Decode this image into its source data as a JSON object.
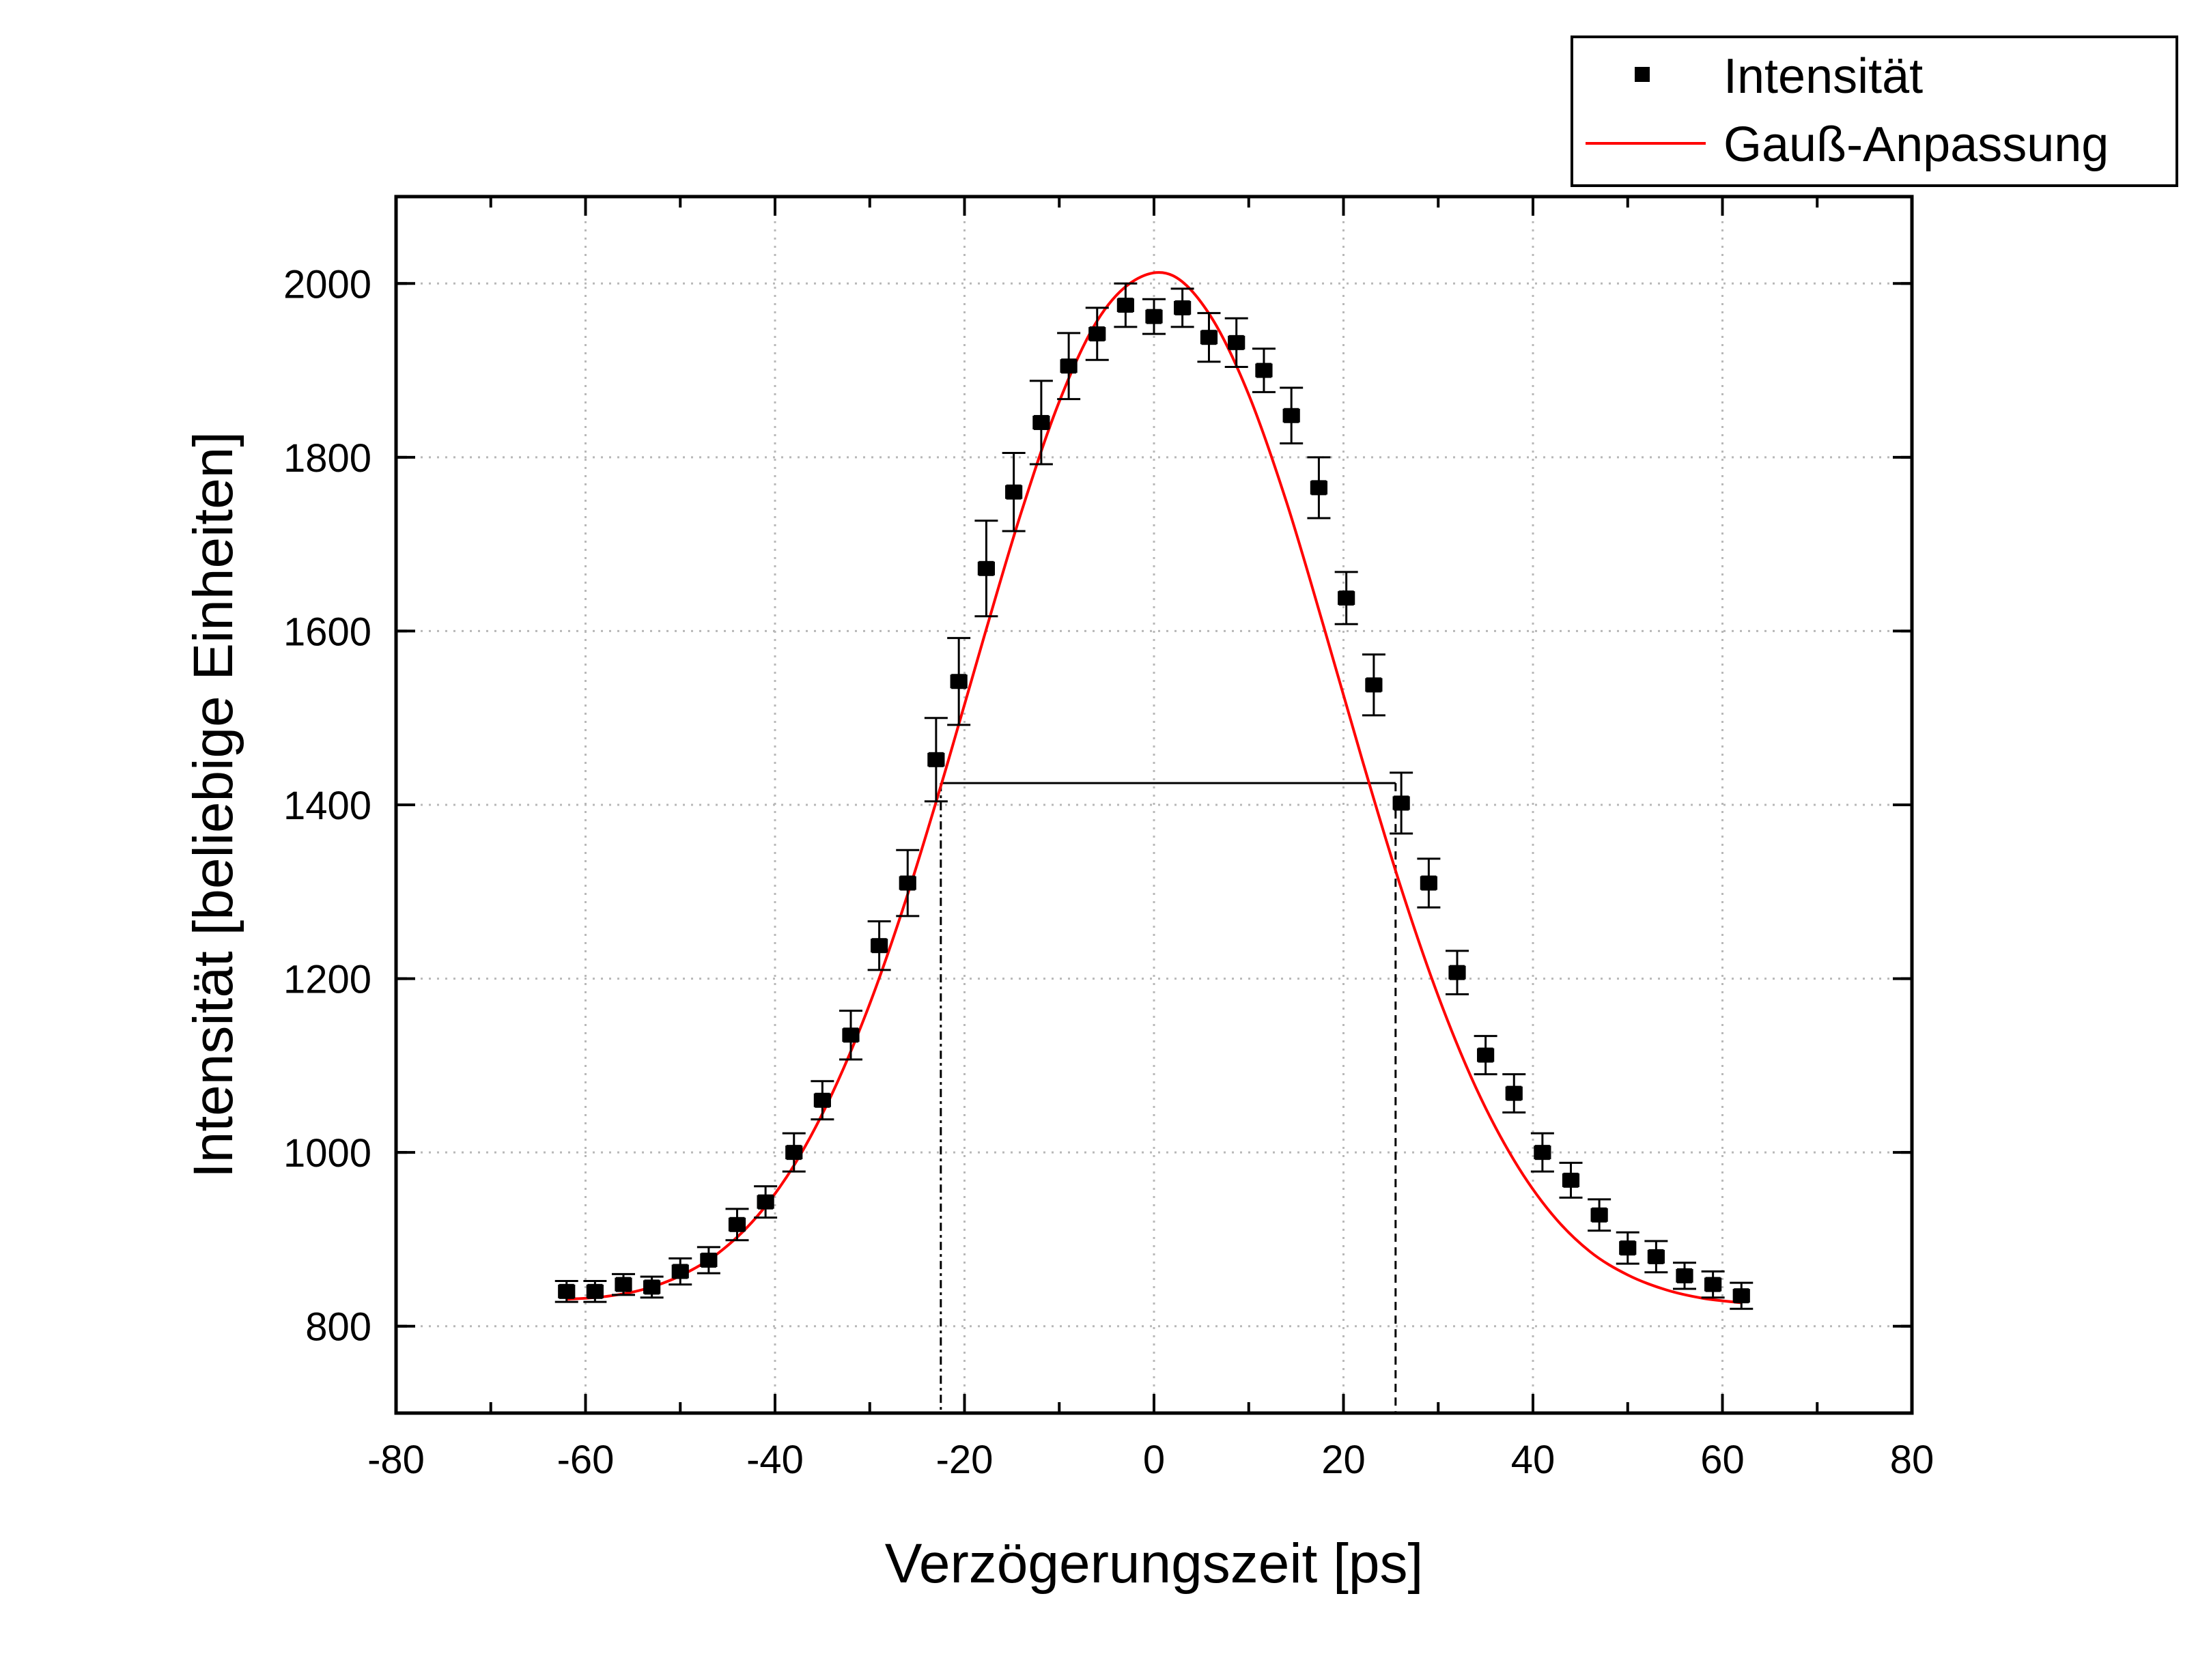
{
  "chart_data": {
    "type": "scatter",
    "xlabel": "Verzögerungszeit [ps]",
    "ylabel": "Intensität [beliebige Einheiten]",
    "xlim": [
      -80,
      80
    ],
    "ylim": [
      700,
      2100
    ],
    "xticks": [
      -80,
      -60,
      -40,
      -20,
      0,
      20,
      40,
      60,
      80
    ],
    "yticks": [
      800,
      1000,
      1200,
      1400,
      1600,
      1800,
      2000
    ],
    "grid": "dotted",
    "legend": "top-right, outside plot",
    "series": [
      {
        "name": "Intensität",
        "kind": "points-with-errorbars",
        "color": "#000000",
        "x": [
          -62,
          -59,
          -56,
          -53,
          -50,
          -47,
          -44,
          -41,
          -38,
          -35,
          -32,
          -29,
          -26,
          -23,
          -20.6,
          -17.7,
          -14.8,
          -11.9,
          -9,
          -6,
          -3,
          0,
          3,
          5.8,
          8.7,
          11.6,
          14.5,
          17.4,
          20.3,
          23.2,
          26.1,
          29,
          32,
          35,
          38,
          41,
          44,
          47,
          50,
          53,
          56,
          59,
          62
        ],
        "y": [
          840,
          840,
          848,
          845,
          863,
          876,
          917,
          943,
          1000,
          1060,
          1135,
          1238,
          1310,
          1452,
          1542,
          1672,
          1760,
          1840,
          1905,
          1942,
          1975,
          1962,
          1972,
          1938,
          1932,
          1900,
          1848,
          1765,
          1638,
          1538,
          1402,
          1310,
          1207,
          1112,
          1068,
          1000,
          968,
          928,
          890,
          880,
          858,
          848,
          835
        ],
        "yerr": [
          12,
          12,
          12,
          12,
          15,
          15,
          18,
          18,
          22,
          22,
          28,
          28,
          38,
          48,
          50,
          55,
          45,
          48,
          38,
          30,
          25,
          20,
          22,
          28,
          28,
          25,
          32,
          35,
          30,
          35,
          35,
          28,
          25,
          22,
          22,
          22,
          20,
          18,
          18,
          18,
          15,
          15,
          15
        ],
        "xerr": 0.8
      },
      {
        "name": "Gauß-Anpassung",
        "kind": "line",
        "color": "#ff0000",
        "x": [
          -62,
          -58,
          -54,
          -50,
          -46,
          -42,
          -38,
          -34,
          -30,
          -26,
          -22,
          -18,
          -14,
          -10,
          -6,
          -2,
          2,
          6,
          10,
          14,
          18,
          22,
          26,
          30,
          34,
          38,
          42,
          46,
          50,
          54,
          58,
          62
        ],
        "y": [
          831,
          834,
          842,
          858,
          884,
          925,
          985,
          1067,
          1171,
          1297,
          1440,
          1591,
          1737,
          1864,
          1957,
          2004,
          2009,
          1962,
          1872,
          1748,
          1602,
          1451,
          1307,
          1180,
          1074,
          991,
          929,
          886,
          859,
          842,
          832,
          827
        ]
      }
    ],
    "annotations": {
      "fwhm_level": 1425,
      "fwhm_left_x": -22.5,
      "fwhm_right_x": 25.5
    }
  }
}
